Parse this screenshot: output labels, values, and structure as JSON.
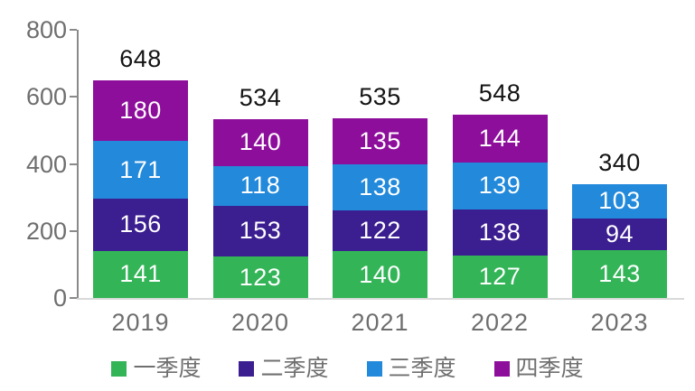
{
  "chart_data": {
    "type": "bar",
    "stacked": true,
    "title": "",
    "xlabel": "",
    "ylabel": "",
    "categories": [
      "2019",
      "2020",
      "2021",
      "2022",
      "2023"
    ],
    "series": [
      {
        "name": "一季度",
        "color": "#33B457",
        "values": [
          141,
          123,
          140,
          127,
          143
        ]
      },
      {
        "name": "二季度",
        "color": "#3B1E8F",
        "values": [
          156,
          153,
          122,
          138,
          94
        ]
      },
      {
        "name": "三季度",
        "color": "#2289DB",
        "values": [
          171,
          118,
          138,
          139,
          103
        ]
      },
      {
        "name": "四季度",
        "color": "#8E0E9C",
        "values": [
          180,
          140,
          135,
          144,
          0
        ]
      }
    ],
    "totals": [
      648,
      534,
      535,
      548,
      340
    ],
    "ylim": [
      0,
      800
    ],
    "yticks": [
      0,
      200,
      400,
      600,
      800
    ],
    "grid": false,
    "legend_position": "bottom",
    "colors": {
      "axis_text": "#6e6e6e",
      "total_label_text": "#141414",
      "segment_label_text": "#ffffff",
      "axis_line": "#8a8a8a",
      "baseline": "#d9d9d9",
      "background": "#ffffff"
    }
  }
}
